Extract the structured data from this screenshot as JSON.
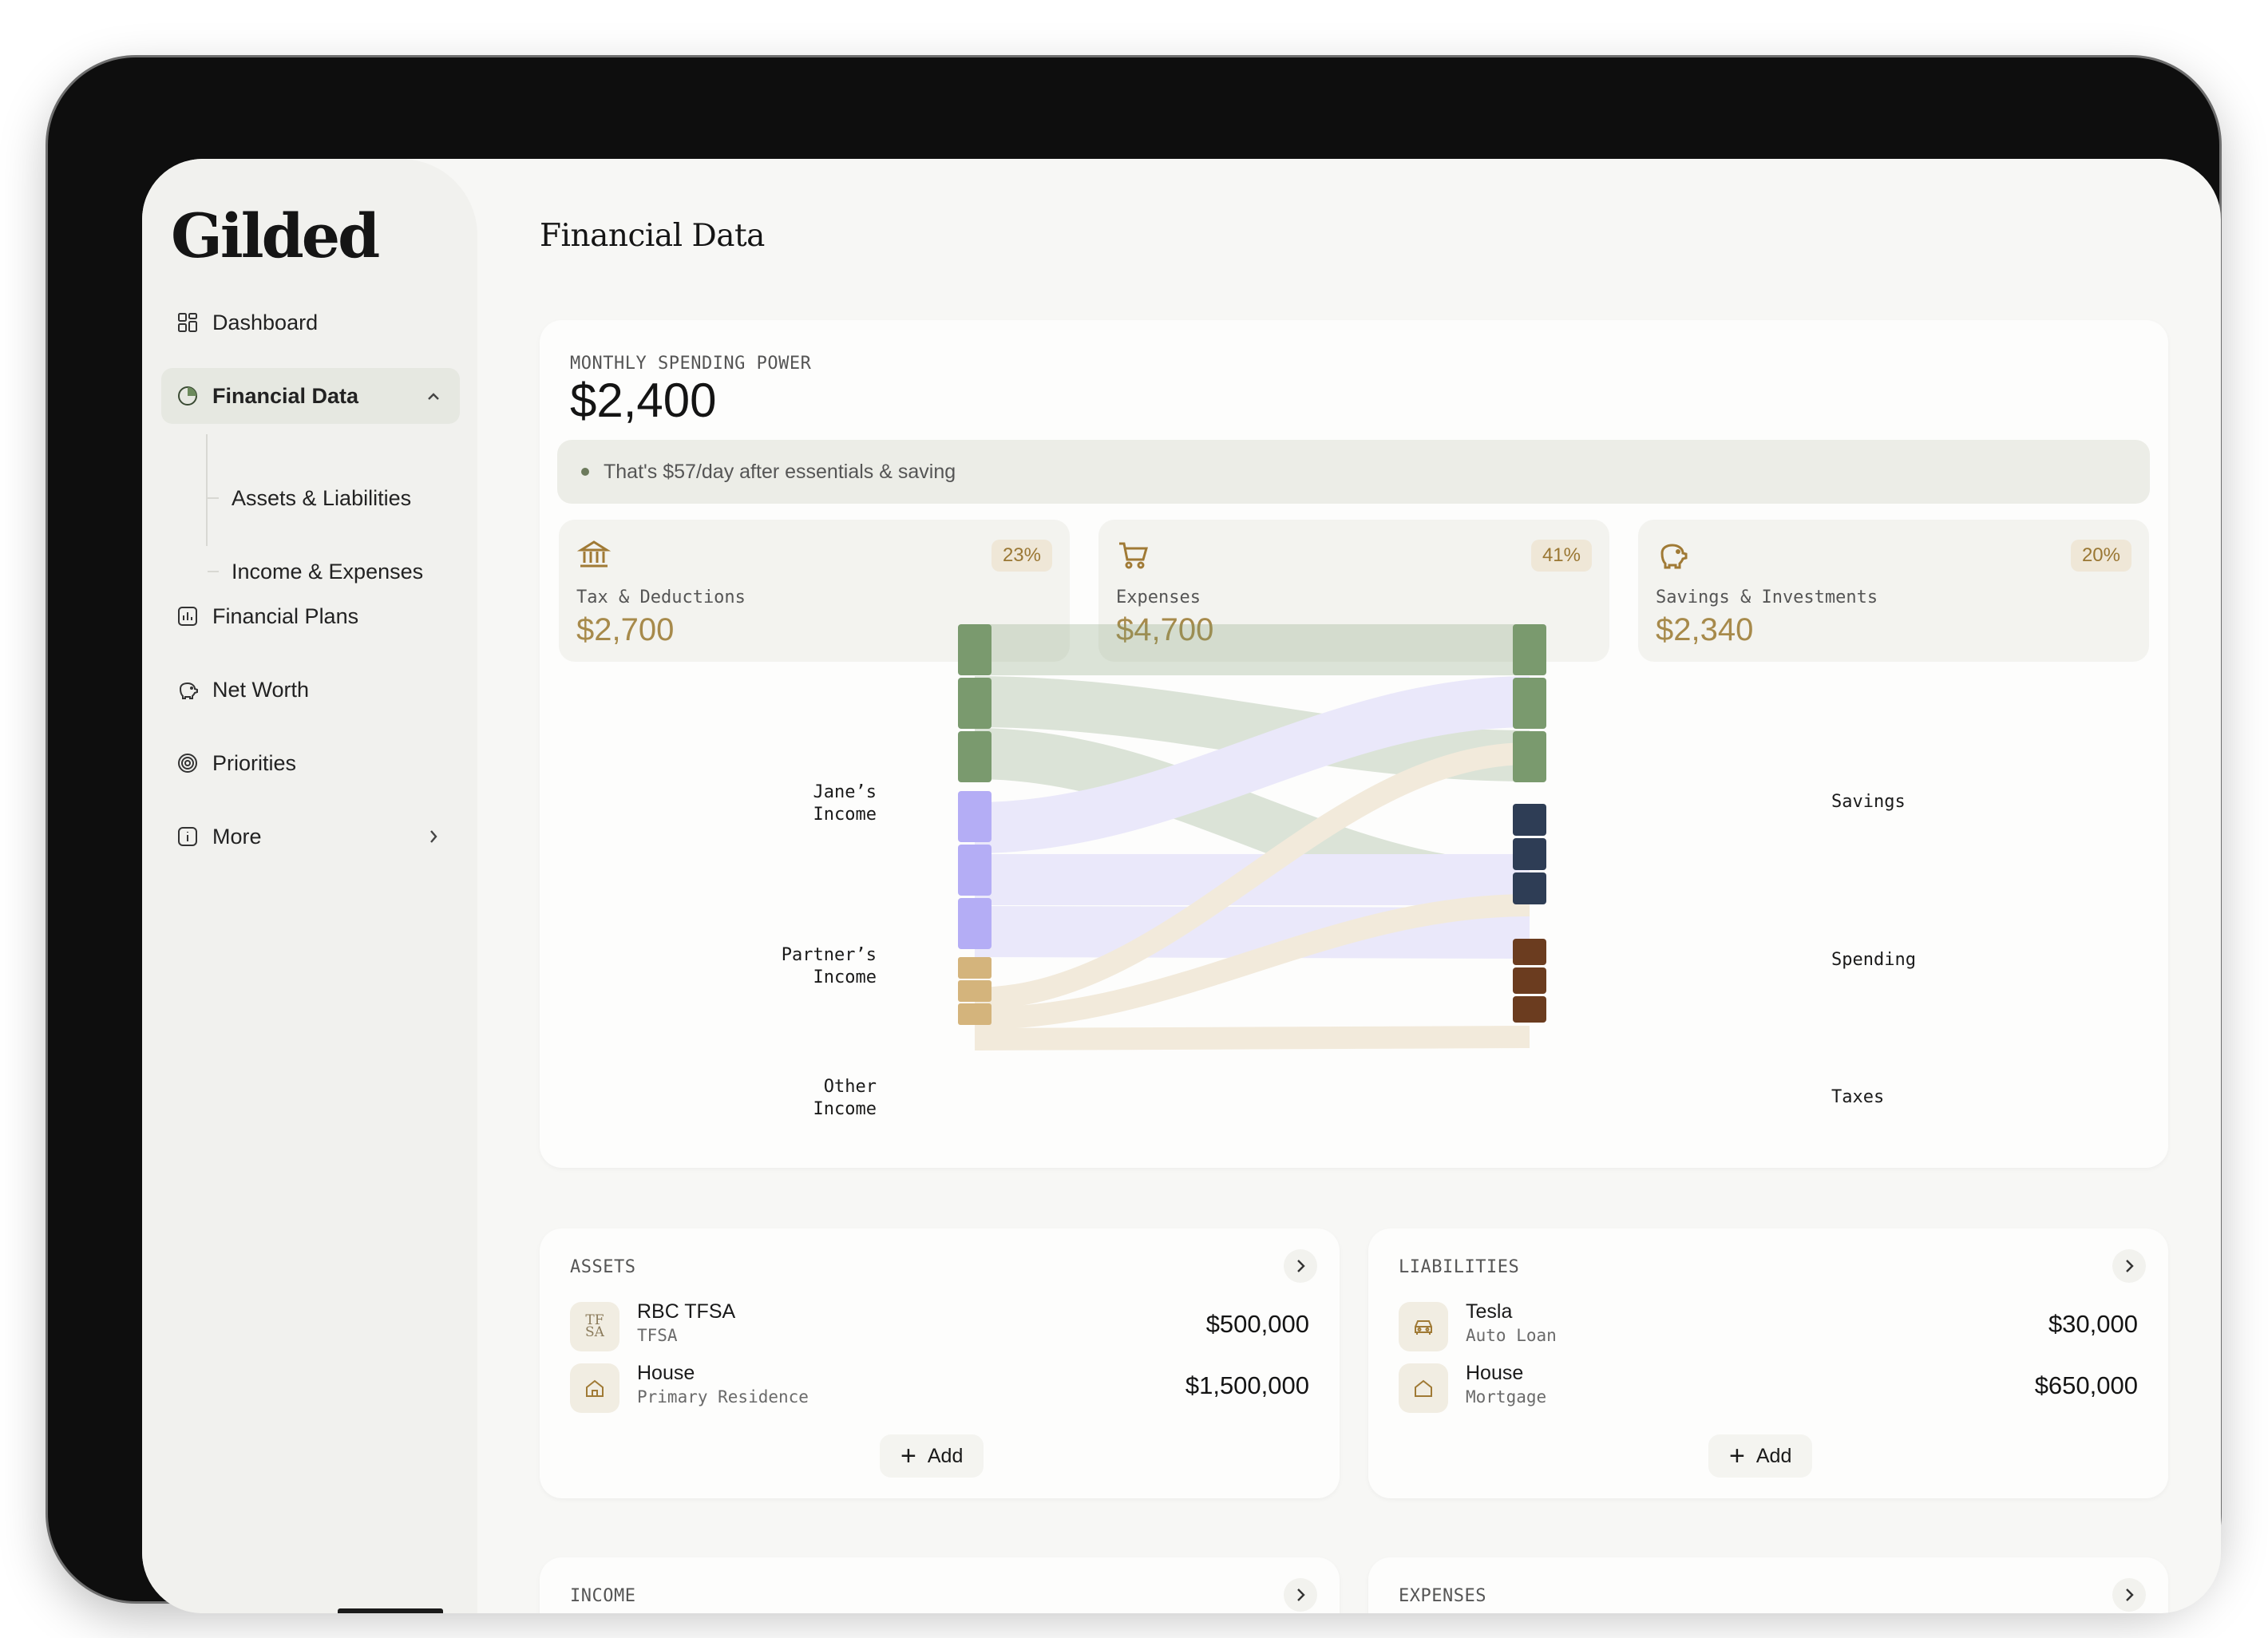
{
  "app": {
    "name": "Gilded"
  },
  "sidebar": {
    "items": [
      {
        "label": "Dashboard",
        "icon": "grid-icon"
      },
      {
        "label": "Financial Data",
        "icon": "pie-chart-icon",
        "active": true
      },
      {
        "label": "Financial Plans",
        "icon": "bar-chart-icon"
      },
      {
        "label": "Net Worth",
        "icon": "piggy-bank-icon"
      },
      {
        "label": "Priorities",
        "icon": "target-icon"
      },
      {
        "label": "More",
        "icon": "info-icon"
      }
    ],
    "subitems": [
      {
        "label": "Assets & Liabilities"
      },
      {
        "label": "Income & Expenses"
      }
    ]
  },
  "page": {
    "title": "Financial Data"
  },
  "spending": {
    "label": "MONTHLY SPENDING POWER",
    "value": "$2,400",
    "hint": "That's $57/day after essentials & saving"
  },
  "stats": [
    {
      "icon": "bank-icon",
      "pct": "23%",
      "label": "Tax & Deductions",
      "value": "$2,700"
    },
    {
      "icon": "cart-icon",
      "pct": "41%",
      "label": "Expenses",
      "value": "$4,700"
    },
    {
      "icon": "piggy-bank-icon",
      "pct": "20%",
      "label": "Savings & Investments",
      "value": "$2,340"
    }
  ],
  "sankey": {
    "sources": [
      "Jane’s\nIncome",
      "Partner’s\nIncome",
      "Other\nIncome"
    ],
    "targets": [
      "Savings",
      "Spending",
      "Taxes"
    ],
    "colors": {
      "jane": "#7a9a6e",
      "partner": "#b4adf5",
      "other": "#d4b47c",
      "savings": "#7a9a6e",
      "spending": "#2e3d55",
      "taxes": "#6b3c1f"
    }
  },
  "assets": {
    "title": "ASSETS",
    "items": [
      {
        "badge": "TF SA",
        "name": "RBC TFSA",
        "sub": "TFSA",
        "value": "$500,000"
      },
      {
        "icon": "house-icon",
        "name": "House",
        "sub": "Primary Residence",
        "value": "$1,500,000"
      }
    ],
    "add_label": "Add"
  },
  "liabilities": {
    "title": "LIABILITIES",
    "items": [
      {
        "icon": "car-icon",
        "name": "Tesla",
        "sub": "Auto Loan",
        "value": "$30,000"
      },
      {
        "icon": "house-icon",
        "name": "House",
        "sub": "Mortgage",
        "value": "$650,000"
      }
    ],
    "add_label": "Add"
  },
  "income": {
    "title": "INCOME"
  },
  "expenses": {
    "title": "EXPENSES"
  }
}
